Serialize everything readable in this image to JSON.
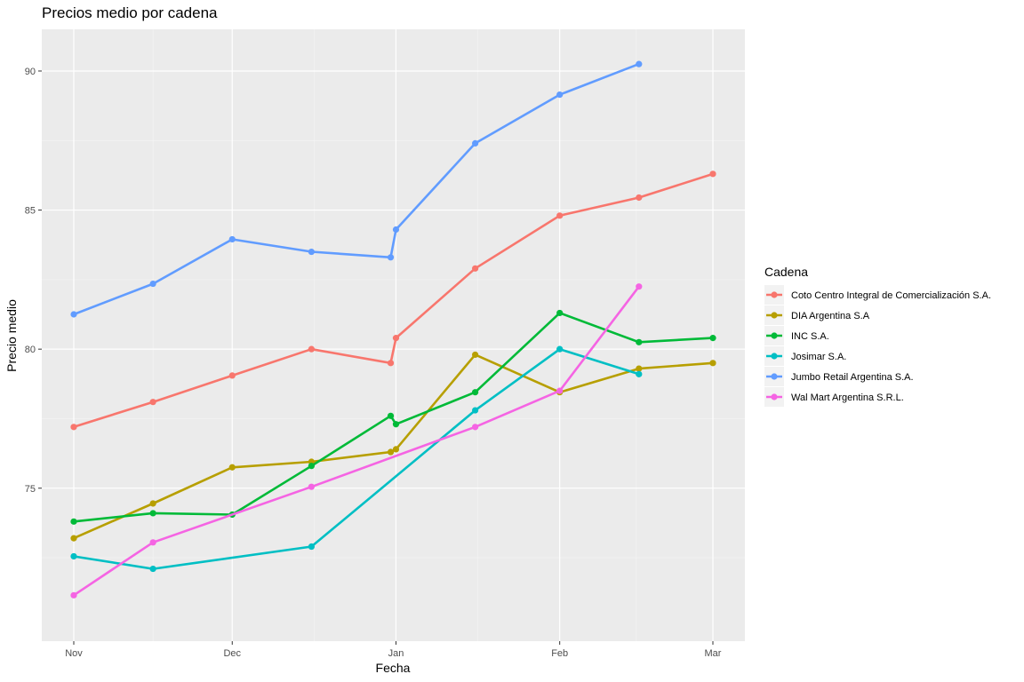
{
  "chart_data": {
    "type": "line",
    "title": "Precios medio por cadena",
    "xlabel": "Fecha",
    "ylabel": "Precio medio",
    "x_ticks": [
      "Nov",
      "Dec",
      "Jan",
      "Feb",
      "Mar"
    ],
    "x_tick_days": [
      0,
      30,
      61,
      92,
      121
    ],
    "ylim": [
      69.5,
      91.5
    ],
    "y_ticks": [
      75,
      80,
      85,
      90
    ],
    "grid": true,
    "legend_title": "Cadena",
    "legend_position": "right",
    "series": [
      {
        "name": "Coto Centro Integral de Comercialización S.A.",
        "color": "#F8766D",
        "x": [
          0,
          15,
          30,
          45,
          60,
          61,
          76,
          92,
          107,
          121
        ],
        "values": [
          77.2,
          78.1,
          79.05,
          80.0,
          79.5,
          80.4,
          82.9,
          84.8,
          85.45,
          86.3
        ]
      },
      {
        "name": "DIA Argentina S.A",
        "color": "#B79F00",
        "x": [
          0,
          15,
          30,
          45,
          60,
          61,
          76,
          92,
          107,
          121
        ],
        "values": [
          73.2,
          74.45,
          75.75,
          75.95,
          76.3,
          76.4,
          79.8,
          78.45,
          79.3,
          79.5
        ]
      },
      {
        "name": "INC S.A.",
        "color": "#00BA38",
        "x": [
          0,
          15,
          30,
          45,
          60,
          61,
          76,
          92,
          107,
          121
        ],
        "values": [
          73.8,
          74.1,
          74.05,
          75.8,
          77.6,
          77.3,
          78.45,
          81.3,
          80.25,
          80.4
        ]
      },
      {
        "name": "Josimar S.A.",
        "color": "#00BFC4",
        "x": [
          0,
          15,
          45,
          76,
          92,
          107
        ],
        "values": [
          72.55,
          72.1,
          72.9,
          77.8,
          80.0,
          79.1
        ]
      },
      {
        "name": "Jumbo Retail Argentina S.A.",
        "color": "#619CFF",
        "x": [
          0,
          15,
          30,
          45,
          60,
          61,
          76,
          92,
          107
        ],
        "values": [
          81.25,
          82.35,
          83.95,
          83.5,
          83.3,
          84.3,
          87.4,
          89.15,
          90.25
        ]
      },
      {
        "name": "Wal Mart Argentina S.R.L.",
        "color": "#F564E3",
        "x": [
          0,
          15,
          45,
          76,
          92,
          107
        ],
        "values": [
          71.15,
          73.05,
          75.05,
          77.2,
          78.5,
          82.25
        ]
      }
    ]
  }
}
